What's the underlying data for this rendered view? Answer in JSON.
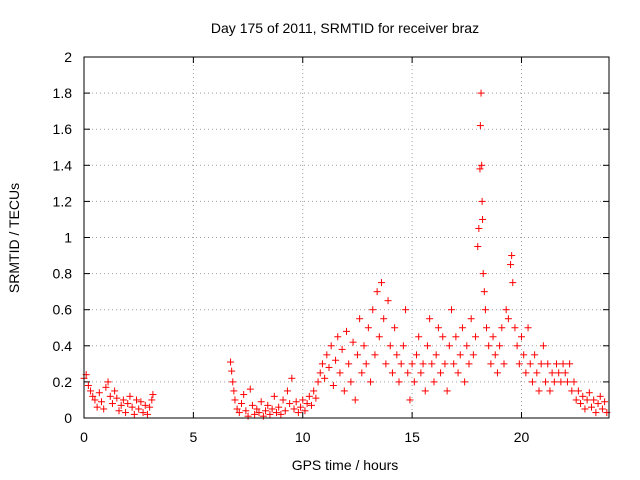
{
  "chart_data": {
    "type": "scatter",
    "title": "Day 175 of 2011, SRMTID for receiver braz",
    "xlabel": "GPS time / hours",
    "ylabel": "SRMTID / TECUs",
    "xlim": [
      0,
      24
    ],
    "ylim": [
      0,
      2
    ],
    "xticks": [
      0,
      5,
      10,
      15,
      20
    ],
    "xtick_labels": [
      "0",
      "5",
      "10",
      "15",
      "20"
    ],
    "yticks": [
      0,
      0.2,
      0.4,
      0.6,
      0.8,
      1,
      1.2,
      1.4,
      1.6,
      1.8,
      2
    ],
    "ytick_labels": [
      "0",
      "0.2",
      "0.4",
      "0.6",
      "0.8",
      "1",
      "1.2",
      "1.4",
      "1.6",
      "1.8",
      "2"
    ],
    "grid": true,
    "marker": "+",
    "color": "#ff0000",
    "series": [
      {
        "name": "SRMTID",
        "points": [
          [
            0.0,
            0.22
          ],
          [
            0.1,
            0.24
          ],
          [
            0.2,
            0.18
          ],
          [
            0.3,
            0.15
          ],
          [
            0.4,
            0.12
          ],
          [
            0.5,
            0.1
          ],
          [
            0.6,
            0.06
          ],
          [
            0.7,
            0.14
          ],
          [
            0.8,
            0.09
          ],
          [
            0.9,
            0.05
          ],
          [
            1.0,
            0.17
          ],
          [
            1.1,
            0.2
          ],
          [
            1.2,
            0.12
          ],
          [
            1.3,
            0.08
          ],
          [
            1.4,
            0.15
          ],
          [
            1.5,
            0.11
          ],
          [
            1.6,
            0.04
          ],
          [
            1.7,
            0.07
          ],
          [
            1.8,
            0.1
          ],
          [
            1.9,
            0.03
          ],
          [
            2.0,
            0.08
          ],
          [
            2.1,
            0.12
          ],
          [
            2.2,
            0.06
          ],
          [
            2.3,
            0.02
          ],
          [
            2.4,
            0.1
          ],
          [
            2.5,
            0.05
          ],
          [
            2.6,
            0.09
          ],
          [
            2.7,
            0.03
          ],
          [
            2.8,
            0.07
          ],
          [
            2.9,
            0.02
          ],
          [
            3.0,
            0.06
          ],
          [
            3.1,
            0.1
          ],
          [
            3.15,
            0.13
          ],
          [
            6.7,
            0.31
          ],
          [
            6.75,
            0.26
          ],
          [
            6.8,
            0.2
          ],
          [
            6.85,
            0.15
          ],
          [
            6.9,
            0.1
          ],
          [
            7.0,
            0.05
          ],
          [
            7.1,
            0.03
          ],
          [
            7.2,
            0.08
          ],
          [
            7.3,
            0.13
          ],
          [
            7.4,
            0.04
          ],
          [
            7.5,
            0.01
          ],
          [
            7.6,
            0.16
          ],
          [
            7.7,
            0.07
          ],
          [
            7.8,
            0.02
          ],
          [
            7.9,
            0.05
          ],
          [
            8.0,
            0.03
          ],
          [
            8.1,
            0.09
          ],
          [
            8.2,
            0.01
          ],
          [
            8.3,
            0.04
          ],
          [
            8.4,
            0.07
          ],
          [
            8.5,
            0.02
          ],
          [
            8.6,
            0.05
          ],
          [
            8.7,
            0.12
          ],
          [
            8.8,
            0.03
          ],
          [
            8.9,
            0.06
          ],
          [
            9.0,
            0.02
          ],
          [
            9.1,
            0.1
          ],
          [
            9.2,
            0.04
          ],
          [
            9.3,
            0.15
          ],
          [
            9.4,
            0.08
          ],
          [
            9.5,
            0.22
          ],
          [
            9.6,
            0.05
          ],
          [
            9.7,
            0.09
          ],
          [
            9.8,
            0.03
          ],
          [
            9.9,
            0.06
          ],
          [
            10.0,
            0.1
          ],
          [
            10.1,
            0.04
          ],
          [
            10.2,
            0.08
          ],
          [
            10.3,
            0.12
          ],
          [
            10.4,
            0.07
          ],
          [
            10.5,
            0.15
          ],
          [
            10.6,
            0.11
          ],
          [
            10.7,
            0.2
          ],
          [
            10.8,
            0.25
          ],
          [
            10.9,
            0.3
          ],
          [
            11.0,
            0.22
          ],
          [
            11.1,
            0.35
          ],
          [
            11.2,
            0.28
          ],
          [
            11.3,
            0.4
          ],
          [
            11.4,
            0.18
          ],
          [
            11.5,
            0.32
          ],
          [
            11.6,
            0.45
          ],
          [
            11.7,
            0.25
          ],
          [
            11.8,
            0.38
          ],
          [
            11.9,
            0.15
          ],
          [
            12.0,
            0.48
          ],
          [
            12.1,
            0.3
          ],
          [
            12.2,
            0.2
          ],
          [
            12.3,
            0.42
          ],
          [
            12.4,
            0.1
          ],
          [
            12.5,
            0.35
          ],
          [
            12.6,
            0.55
          ],
          [
            12.7,
            0.25
          ],
          [
            12.8,
            0.4
          ],
          [
            12.9,
            0.3
          ],
          [
            13.0,
            0.5
          ],
          [
            13.1,
            0.2
          ],
          [
            13.2,
            0.6
          ],
          [
            13.3,
            0.35
          ],
          [
            13.4,
            0.7
          ],
          [
            13.5,
            0.45
          ],
          [
            13.6,
            0.75
          ],
          [
            13.7,
            0.55
          ],
          [
            13.8,
            0.3
          ],
          [
            13.9,
            0.65
          ],
          [
            14.0,
            0.4
          ],
          [
            14.1,
            0.25
          ],
          [
            14.2,
            0.5
          ],
          [
            14.3,
            0.35
          ],
          [
            14.4,
            0.2
          ],
          [
            14.5,
            0.3
          ],
          [
            14.6,
            0.4
          ],
          [
            14.7,
            0.6
          ],
          [
            14.8,
            0.25
          ],
          [
            14.9,
            0.1
          ],
          [
            15.0,
            0.3
          ],
          [
            15.1,
            0.2
          ],
          [
            15.2,
            0.35
          ],
          [
            15.3,
            0.45
          ],
          [
            15.4,
            0.25
          ],
          [
            15.5,
            0.3
          ],
          [
            15.6,
            0.15
          ],
          [
            15.7,
            0.4
          ],
          [
            15.8,
            0.55
          ],
          [
            15.9,
            0.3
          ],
          [
            16.0,
            0.2
          ],
          [
            16.1,
            0.35
          ],
          [
            16.2,
            0.5
          ],
          [
            16.3,
            0.25
          ],
          [
            16.4,
            0.45
          ],
          [
            16.5,
            0.3
          ],
          [
            16.6,
            0.15
          ],
          [
            16.7,
            0.4
          ],
          [
            16.8,
            0.6
          ],
          [
            16.9,
            0.3
          ],
          [
            17.0,
            0.45
          ],
          [
            17.1,
            0.25
          ],
          [
            17.2,
            0.35
          ],
          [
            17.3,
            0.5
          ],
          [
            17.4,
            0.2
          ],
          [
            17.5,
            0.4
          ],
          [
            17.6,
            0.3
          ],
          [
            17.7,
            0.55
          ],
          [
            17.8,
            0.35
          ],
          [
            17.9,
            0.45
          ],
          [
            18.0,
            0.95
          ],
          [
            18.05,
            1.05
          ],
          [
            18.1,
            1.38
          ],
          [
            18.12,
            1.62
          ],
          [
            18.15,
            1.8
          ],
          [
            18.18,
            1.4
          ],
          [
            18.2,
            1.2
          ],
          [
            18.22,
            1.1
          ],
          [
            18.25,
            0.8
          ],
          [
            18.3,
            0.7
          ],
          [
            18.35,
            0.6
          ],
          [
            18.4,
            0.5
          ],
          [
            18.5,
            0.4
          ],
          [
            18.6,
            0.3
          ],
          [
            18.7,
            0.45
          ],
          [
            18.8,
            0.35
          ],
          [
            18.9,
            0.25
          ],
          [
            19.0,
            0.4
          ],
          [
            19.1,
            0.5
          ],
          [
            19.2,
            0.3
          ],
          [
            19.3,
            0.6
          ],
          [
            19.4,
            0.55
          ],
          [
            19.5,
            0.85
          ],
          [
            19.55,
            0.9
          ],
          [
            19.6,
            0.75
          ],
          [
            19.7,
            0.5
          ],
          [
            19.8,
            0.4
          ],
          [
            19.9,
            0.3
          ],
          [
            20.0,
            0.45
          ],
          [
            20.1,
            0.35
          ],
          [
            20.2,
            0.25
          ],
          [
            20.3,
            0.5
          ],
          [
            20.4,
            0.3
          ],
          [
            20.5,
            0.2
          ],
          [
            20.6,
            0.35
          ],
          [
            20.7,
            0.25
          ],
          [
            20.8,
            0.15
          ],
          [
            20.9,
            0.3
          ],
          [
            21.0,
            0.4
          ],
          [
            21.1,
            0.2
          ],
          [
            21.2,
            0.3
          ],
          [
            21.3,
            0.15
          ],
          [
            21.4,
            0.25
          ],
          [
            21.5,
            0.2
          ],
          [
            21.6,
            0.3
          ],
          [
            21.7,
            0.25
          ],
          [
            21.8,
            0.2
          ],
          [
            21.9,
            0.3
          ],
          [
            22.0,
            0.25
          ],
          [
            22.1,
            0.2
          ],
          [
            22.2,
            0.3
          ],
          [
            22.3,
            0.15
          ],
          [
            22.4,
            0.2
          ],
          [
            22.5,
            0.1
          ],
          [
            22.6,
            0.15
          ],
          [
            22.7,
            0.08
          ],
          [
            22.8,
            0.12
          ],
          [
            22.9,
            0.05
          ],
          [
            23.0,
            0.1
          ],
          [
            23.1,
            0.14
          ],
          [
            23.2,
            0.06
          ],
          [
            23.3,
            0.1
          ],
          [
            23.4,
            0.03
          ],
          [
            23.5,
            0.08
          ],
          [
            23.6,
            0.12
          ],
          [
            23.7,
            0.05
          ],
          [
            23.8,
            0.09
          ],
          [
            23.9,
            0.03
          ]
        ]
      }
    ]
  }
}
